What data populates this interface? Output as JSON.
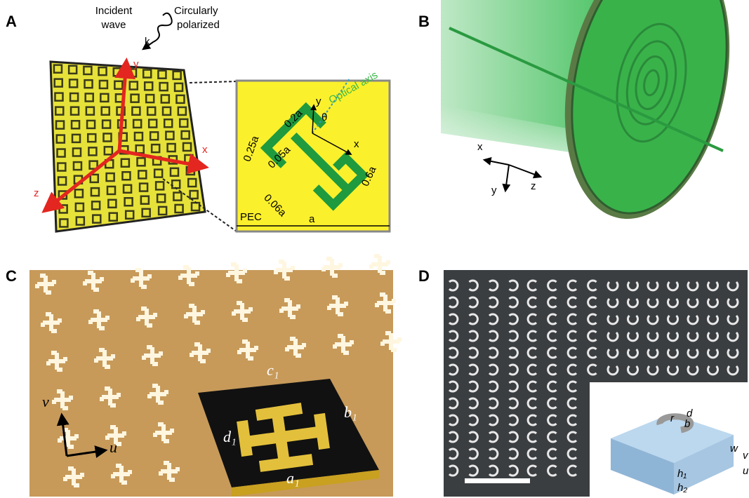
{
  "panels": [
    {
      "label": "A",
      "incident": [
        "Incident",
        "wave"
      ],
      "polarization": [
        "Circularly",
        "polarized"
      ],
      "wave_vector": "k",
      "axes": [
        "y",
        "x",
        "z"
      ],
      "inset": {
        "optical_axis": "Optical axis",
        "axes": [
          "y",
          "x"
        ],
        "angle": "θ",
        "dims": [
          "0.2a",
          "0.25a",
          "0.05a",
          "0.06a",
          "0.6a",
          "a"
        ],
        "material": "PEC"
      }
    },
    {
      "label": "B",
      "axes": [
        "x",
        "y",
        "z"
      ]
    },
    {
      "label": "C",
      "axes": [
        "v",
        "u"
      ],
      "dims": [
        "c₁",
        "b₁",
        "d₁",
        "a₁"
      ]
    },
    {
      "label": "D",
      "axes": [
        "w",
        "v",
        "u"
      ],
      "dims": [
        "d",
        "r",
        "b",
        "h₁",
        "h₂"
      ]
    }
  ]
}
